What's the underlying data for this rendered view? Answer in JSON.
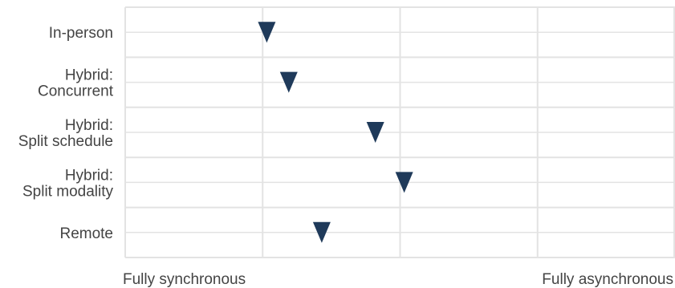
{
  "chart_data": {
    "type": "scatter",
    "marker": "triangle-down",
    "marker_color": "#1f3a5a",
    "grid": true,
    "gridline_color": "#e3e3e3",
    "xlim": [
      0,
      4
    ],
    "x_tick_labels": {
      "left": "Fully synchronous",
      "right": "Fully asynchronous"
    },
    "categories": [
      {
        "label": [
          "In-person"
        ],
        "value": 1.03
      },
      {
        "label": [
          "Hybrid:",
          "Concurrent"
        ],
        "value": 1.19
      },
      {
        "label": [
          "Hybrid:",
          "Split schedule"
        ],
        "value": 1.82
      },
      {
        "label": [
          "Hybrid:",
          "Split modality"
        ],
        "value": 2.03
      },
      {
        "label": [
          "Remote"
        ],
        "value": 1.43
      }
    ]
  }
}
